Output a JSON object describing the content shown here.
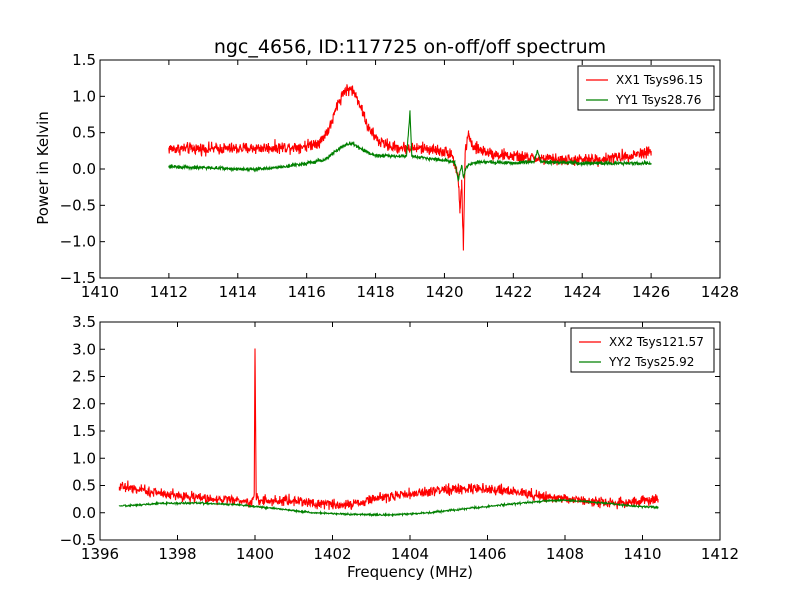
{
  "title": "ngc_4656, ID:117725 on-off/off spectrum",
  "ylabel": "Power in Kelvin",
  "xlabel": "Frequency (MHz)",
  "chart_data": [
    {
      "type": "line",
      "title": "ngc_4656, ID:117725 on-off/off spectrum",
      "ylabel": "Power in Kelvin",
      "xlabel": "",
      "xlim": [
        1410,
        1428
      ],
      "ylim": [
        -1.5,
        1.5
      ],
      "xticks": [
        1410,
        1412,
        1414,
        1416,
        1418,
        1420,
        1422,
        1424,
        1426,
        1428
      ],
      "yticks": [
        -1.5,
        -1.0,
        -0.5,
        0.0,
        0.5,
        1.0,
        1.5
      ],
      "xtick_labels": [
        "1410",
        "1412",
        "1414",
        "1416",
        "1418",
        "1420",
        "1422",
        "1424",
        "1426",
        "1428"
      ],
      "ytick_labels": [
        "−1.5",
        "−1.0",
        "−0.5",
        "0.0",
        "0.5",
        "1.0",
        "1.5"
      ],
      "legend": "top-right",
      "grid": false,
      "series": [
        {
          "name": "XX1 Tsys96.15",
          "color": "#ff0000",
          "noise": 0.05,
          "points": [
            [
              1412.0,
              0.28
            ],
            [
              1414.0,
              0.28
            ],
            [
              1415.5,
              0.3
            ],
            [
              1416.0,
              0.32
            ],
            [
              1416.4,
              0.38
            ],
            [
              1416.7,
              0.6
            ],
            [
              1416.9,
              0.9
            ],
            [
              1417.1,
              1.08
            ],
            [
              1417.3,
              1.1
            ],
            [
              1417.5,
              0.95
            ],
            [
              1417.8,
              0.55
            ],
            [
              1418.1,
              0.38
            ],
            [
              1418.5,
              0.3
            ],
            [
              1419.5,
              0.28
            ],
            [
              1420.2,
              0.22
            ],
            [
              1420.4,
              -0.1
            ],
            [
              1420.45,
              -0.6
            ],
            [
              1420.5,
              -0.2
            ],
            [
              1420.55,
              -1.07
            ],
            [
              1420.6,
              0.2
            ],
            [
              1420.7,
              0.5
            ],
            [
              1420.8,
              0.3
            ],
            [
              1421.5,
              0.2
            ],
            [
              1422.5,
              0.15
            ],
            [
              1423.5,
              0.12
            ],
            [
              1424.5,
              0.13
            ],
            [
              1425.3,
              0.18
            ],
            [
              1426.0,
              0.25
            ]
          ]
        },
        {
          "name": "YY1 Tsys28.76",
          "color": "#008000",
          "noise": 0.015,
          "points": [
            [
              1412.0,
              0.03
            ],
            [
              1413.0,
              0.02
            ],
            [
              1414.0,
              0.0
            ],
            [
              1414.7,
              0.0
            ],
            [
              1415.3,
              0.03
            ],
            [
              1416.0,
              0.08
            ],
            [
              1416.5,
              0.12
            ],
            [
              1417.0,
              0.3
            ],
            [
              1417.3,
              0.36
            ],
            [
              1417.6,
              0.27
            ],
            [
              1418.0,
              0.18
            ],
            [
              1418.9,
              0.18
            ],
            [
              1419.0,
              0.78
            ],
            [
              1419.05,
              0.18
            ],
            [
              1419.8,
              0.13
            ],
            [
              1420.3,
              0.1
            ],
            [
              1420.4,
              -0.15
            ],
            [
              1420.5,
              0.05
            ],
            [
              1420.55,
              -0.12
            ],
            [
              1420.65,
              0.05
            ],
            [
              1421.0,
              0.1
            ],
            [
              1422.0,
              0.08
            ],
            [
              1422.6,
              0.1
            ],
            [
              1422.7,
              0.25
            ],
            [
              1422.8,
              0.1
            ],
            [
              1424.0,
              0.08
            ],
            [
              1426.0,
              0.08
            ]
          ]
        }
      ]
    },
    {
      "type": "line",
      "title": "",
      "xlabel": "Frequency (MHz)",
      "ylabel": "",
      "xlim": [
        1396,
        1412
      ],
      "ylim": [
        -0.5,
        3.5
      ],
      "xticks": [
        1396,
        1398,
        1400,
        1402,
        1404,
        1406,
        1408,
        1410,
        1412
      ],
      "yticks": [
        -0.5,
        0.0,
        0.5,
        1.0,
        1.5,
        2.0,
        2.5,
        3.0,
        3.5
      ],
      "xtick_labels": [
        "1396",
        "1398",
        "1400",
        "1402",
        "1404",
        "1406",
        "1408",
        "1410",
        "1412"
      ],
      "ytick_labels": [
        "−0.5",
        "0.0",
        "0.5",
        "1.0",
        "1.5",
        "2.0",
        "2.5",
        "3.0",
        "3.5"
      ],
      "legend": "top-right",
      "grid": false,
      "series": [
        {
          "name": "XX2 Tsys121.57",
          "color": "#ff0000",
          "noise": 0.06,
          "points": [
            [
              1396.5,
              0.5
            ],
            [
              1397.0,
              0.42
            ],
            [
              1398.0,
              0.32
            ],
            [
              1399.0,
              0.25
            ],
            [
              1399.9,
              0.2
            ],
            [
              1399.98,
              0.3
            ],
            [
              1400.0,
              3.08
            ],
            [
              1400.03,
              0.3
            ],
            [
              1400.1,
              0.22
            ],
            [
              1401.0,
              0.22
            ],
            [
              1402.0,
              0.15
            ],
            [
              1402.5,
              0.15
            ],
            [
              1403.0,
              0.25
            ],
            [
              1404.0,
              0.35
            ],
            [
              1405.0,
              0.42
            ],
            [
              1405.5,
              0.45
            ],
            [
              1406.5,
              0.4
            ],
            [
              1407.5,
              0.3
            ],
            [
              1408.5,
              0.22
            ],
            [
              1409.5,
              0.18
            ],
            [
              1410.4,
              0.25
            ]
          ]
        },
        {
          "name": "YY2 Tsys25.92",
          "color": "#008000",
          "noise": 0.01,
          "points": [
            [
              1396.5,
              0.12
            ],
            [
              1397.5,
              0.17
            ],
            [
              1398.5,
              0.18
            ],
            [
              1399.5,
              0.15
            ],
            [
              1400.5,
              0.08
            ],
            [
              1401.5,
              0.0
            ],
            [
              1402.5,
              -0.03
            ],
            [
              1403.5,
              -0.04
            ],
            [
              1404.5,
              0.0
            ],
            [
              1405.5,
              0.08
            ],
            [
              1406.5,
              0.15
            ],
            [
              1407.5,
              0.22
            ],
            [
              1408.0,
              0.23
            ],
            [
              1409.0,
              0.18
            ],
            [
              1409.8,
              0.12
            ],
            [
              1410.4,
              0.1
            ]
          ]
        }
      ]
    }
  ]
}
